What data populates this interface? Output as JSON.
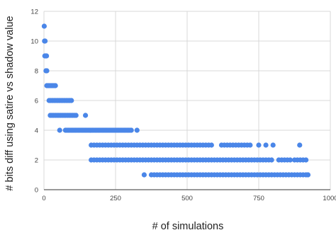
{
  "chart_data": {
    "type": "scatter",
    "title": "",
    "xlabel": "# of simulations",
    "ylabel": "# bits diff using satire vs shadow value",
    "xlim": [
      0,
      1000
    ],
    "ylim": [
      0,
      12
    ],
    "x_ticks": [
      0,
      250,
      500,
      750,
      1000
    ],
    "x_tick_labels": [
      "0",
      "250",
      "500",
      "750",
      "1000"
    ],
    "y_ticks": [
      0,
      2,
      4,
      6,
      8,
      10,
      12
    ],
    "y_tick_labels": [
      "0",
      "2",
      "4",
      "6",
      "8",
      "10",
      "12"
    ],
    "grid": true,
    "legend": "none",
    "marker_color": "#4a86e8",
    "series": [
      {
        "points": [
          [
            1,
            11
          ],
          [
            2,
            10
          ],
          [
            4,
            10
          ],
          [
            3,
            9
          ],
          [
            6,
            9
          ],
          [
            9,
            9
          ],
          [
            7,
            8
          ],
          [
            10,
            8
          ],
          [
            10,
            7
          ],
          [
            15,
            7
          ],
          [
            20,
            7
          ],
          [
            25,
            7
          ],
          [
            30,
            7
          ],
          [
            35,
            7
          ],
          [
            40,
            7
          ],
          [
            18,
            6
          ],
          [
            24,
            6
          ],
          [
            30,
            6
          ],
          [
            36,
            6
          ],
          [
            42,
            6
          ],
          [
            48,
            6
          ],
          [
            54,
            6
          ],
          [
            60,
            6
          ],
          [
            66,
            6
          ],
          [
            72,
            6
          ],
          [
            78,
            6
          ],
          [
            84,
            6
          ],
          [
            90,
            6
          ],
          [
            96,
            6
          ],
          [
            22,
            5
          ],
          [
            28,
            5
          ],
          [
            34,
            5
          ],
          [
            40,
            5
          ],
          [
            46,
            5
          ],
          [
            52,
            5
          ],
          [
            58,
            5
          ],
          [
            64,
            5
          ],
          [
            70,
            5
          ],
          [
            76,
            5
          ],
          [
            82,
            5
          ],
          [
            88,
            5
          ],
          [
            94,
            5
          ],
          [
            100,
            5
          ],
          [
            106,
            5
          ],
          [
            112,
            5
          ],
          [
            145,
            5
          ],
          [
            55,
            4
          ],
          [
            75,
            4
          ],
          [
            80,
            4
          ],
          [
            85,
            4
          ],
          [
            90,
            4
          ],
          [
            95,
            4
          ],
          [
            100,
            4
          ],
          [
            105,
            4
          ],
          [
            110,
            4
          ],
          [
            115,
            4
          ],
          [
            120,
            4
          ],
          [
            125,
            4
          ],
          [
            130,
            4
          ],
          [
            135,
            4
          ],
          [
            140,
            4
          ],
          [
            145,
            4
          ],
          [
            150,
            4
          ],
          [
            155,
            4
          ],
          [
            160,
            4
          ],
          [
            165,
            4
          ],
          [
            170,
            4
          ],
          [
            175,
            4
          ],
          [
            180,
            4
          ],
          [
            185,
            4
          ],
          [
            190,
            4
          ],
          [
            195,
            4
          ],
          [
            200,
            4
          ],
          [
            205,
            4
          ],
          [
            210,
            4
          ],
          [
            215,
            4
          ],
          [
            220,
            4
          ],
          [
            225,
            4
          ],
          [
            230,
            4
          ],
          [
            235,
            4
          ],
          [
            240,
            4
          ],
          [
            245,
            4
          ],
          [
            250,
            4
          ],
          [
            255,
            4
          ],
          [
            260,
            4
          ],
          [
            265,
            4
          ],
          [
            270,
            4
          ],
          [
            275,
            4
          ],
          [
            280,
            4
          ],
          [
            285,
            4
          ],
          [
            290,
            4
          ],
          [
            295,
            4
          ],
          [
            300,
            4
          ],
          [
            305,
            4
          ],
          [
            325,
            4
          ],
          [
            165,
            3
          ],
          [
            175,
            3
          ],
          [
            185,
            3
          ],
          [
            195,
            3
          ],
          [
            205,
            3
          ],
          [
            215,
            3
          ],
          [
            225,
            3
          ],
          [
            235,
            3
          ],
          [
            245,
            3
          ],
          [
            255,
            3
          ],
          [
            265,
            3
          ],
          [
            275,
            3
          ],
          [
            285,
            3
          ],
          [
            295,
            3
          ],
          [
            305,
            3
          ],
          [
            315,
            3
          ],
          [
            325,
            3
          ],
          [
            335,
            3
          ],
          [
            345,
            3
          ],
          [
            355,
            3
          ],
          [
            365,
            3
          ],
          [
            375,
            3
          ],
          [
            385,
            3
          ],
          [
            395,
            3
          ],
          [
            405,
            3
          ],
          [
            415,
            3
          ],
          [
            425,
            3
          ],
          [
            435,
            3
          ],
          [
            445,
            3
          ],
          [
            455,
            3
          ],
          [
            465,
            3
          ],
          [
            475,
            3
          ],
          [
            485,
            3
          ],
          [
            495,
            3
          ],
          [
            505,
            3
          ],
          [
            515,
            3
          ],
          [
            525,
            3
          ],
          [
            535,
            3
          ],
          [
            545,
            3
          ],
          [
            555,
            3
          ],
          [
            565,
            3
          ],
          [
            575,
            3
          ],
          [
            585,
            3
          ],
          [
            620,
            3
          ],
          [
            630,
            3
          ],
          [
            640,
            3
          ],
          [
            650,
            3
          ],
          [
            660,
            3
          ],
          [
            670,
            3
          ],
          [
            680,
            3
          ],
          [
            690,
            3
          ],
          [
            700,
            3
          ],
          [
            710,
            3
          ],
          [
            720,
            3
          ],
          [
            750,
            3
          ],
          [
            775,
            3
          ],
          [
            800,
            3
          ],
          [
            893,
            3
          ],
          [
            165,
            2
          ],
          [
            175,
            2
          ],
          [
            185,
            2
          ],
          [
            195,
            2
          ],
          [
            205,
            2
          ],
          [
            215,
            2
          ],
          [
            225,
            2
          ],
          [
            235,
            2
          ],
          [
            245,
            2
          ],
          [
            255,
            2
          ],
          [
            265,
            2
          ],
          [
            275,
            2
          ],
          [
            285,
            2
          ],
          [
            295,
            2
          ],
          [
            305,
            2
          ],
          [
            315,
            2
          ],
          [
            325,
            2
          ],
          [
            335,
            2
          ],
          [
            345,
            2
          ],
          [
            355,
            2
          ],
          [
            365,
            2
          ],
          [
            375,
            2
          ],
          [
            385,
            2
          ],
          [
            395,
            2
          ],
          [
            405,
            2
          ],
          [
            415,
            2
          ],
          [
            425,
            2
          ],
          [
            435,
            2
          ],
          [
            445,
            2
          ],
          [
            455,
            2
          ],
          [
            465,
            2
          ],
          [
            475,
            2
          ],
          [
            485,
            2
          ],
          [
            495,
            2
          ],
          [
            505,
            2
          ],
          [
            515,
            2
          ],
          [
            525,
            2
          ],
          [
            535,
            2
          ],
          [
            545,
            2
          ],
          [
            555,
            2
          ],
          [
            565,
            2
          ],
          [
            575,
            2
          ],
          [
            585,
            2
          ],
          [
            595,
            2
          ],
          [
            605,
            2
          ],
          [
            615,
            2
          ],
          [
            625,
            2
          ],
          [
            635,
            2
          ],
          [
            645,
            2
          ],
          [
            655,
            2
          ],
          [
            665,
            2
          ],
          [
            675,
            2
          ],
          [
            685,
            2
          ],
          [
            695,
            2
          ],
          [
            705,
            2
          ],
          [
            715,
            2
          ],
          [
            725,
            2
          ],
          [
            735,
            2
          ],
          [
            745,
            2
          ],
          [
            755,
            2
          ],
          [
            765,
            2
          ],
          [
            775,
            2
          ],
          [
            785,
            2
          ],
          [
            795,
            2
          ],
          [
            820,
            2
          ],
          [
            830,
            2
          ],
          [
            840,
            2
          ],
          [
            850,
            2
          ],
          [
            860,
            2
          ],
          [
            875,
            2
          ],
          [
            885,
            2
          ],
          [
            895,
            2
          ],
          [
            905,
            2
          ],
          [
            915,
            2
          ],
          [
            350,
            1
          ],
          [
            375,
            1
          ],
          [
            385,
            1
          ],
          [
            395,
            1
          ],
          [
            405,
            1
          ],
          [
            415,
            1
          ],
          [
            425,
            1
          ],
          [
            435,
            1
          ],
          [
            445,
            1
          ],
          [
            455,
            1
          ],
          [
            465,
            1
          ],
          [
            475,
            1
          ],
          [
            485,
            1
          ],
          [
            495,
            1
          ],
          [
            505,
            1
          ],
          [
            515,
            1
          ],
          [
            525,
            1
          ],
          [
            535,
            1
          ],
          [
            545,
            1
          ],
          [
            555,
            1
          ],
          [
            565,
            1
          ],
          [
            575,
            1
          ],
          [
            585,
            1
          ],
          [
            595,
            1
          ],
          [
            605,
            1
          ],
          [
            615,
            1
          ],
          [
            625,
            1
          ],
          [
            635,
            1
          ],
          [
            645,
            1
          ],
          [
            655,
            1
          ],
          [
            665,
            1
          ],
          [
            675,
            1
          ],
          [
            685,
            1
          ],
          [
            695,
            1
          ],
          [
            705,
            1
          ],
          [
            715,
            1
          ],
          [
            725,
            1
          ],
          [
            735,
            1
          ],
          [
            745,
            1
          ],
          [
            755,
            1
          ],
          [
            765,
            1
          ],
          [
            775,
            1
          ],
          [
            785,
            1
          ],
          [
            795,
            1
          ],
          [
            805,
            1
          ],
          [
            815,
            1
          ],
          [
            825,
            1
          ],
          [
            835,
            1
          ],
          [
            845,
            1
          ],
          [
            855,
            1
          ],
          [
            865,
            1
          ],
          [
            875,
            1
          ],
          [
            885,
            1
          ],
          [
            895,
            1
          ],
          [
            905,
            1
          ],
          [
            915,
            1
          ],
          [
            922,
            1
          ]
        ]
      }
    ]
  }
}
